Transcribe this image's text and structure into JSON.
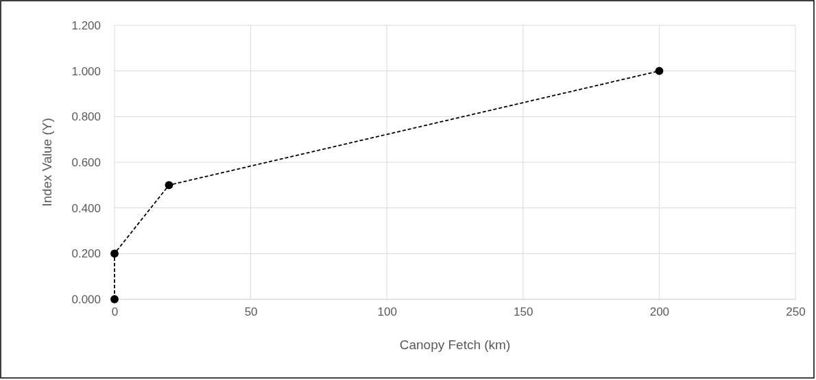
{
  "chart_data": {
    "type": "line",
    "xlabel": "Canopy Fetch (km)",
    "ylabel": "Index Value (Y)",
    "x": [
      0,
      0,
      20,
      200
    ],
    "series": [
      {
        "color": "#000000",
        "values": [
          0,
          0.2,
          0.5,
          1.0
        ]
      }
    ],
    "xlim": [
      0,
      250
    ],
    "xticks": [
      0,
      50,
      100,
      150,
      200,
      250
    ],
    "ylim": [
      0,
      1.2
    ],
    "yticks": [
      {
        "value": 0,
        "label": "0.000"
      },
      {
        "value": 0.2,
        "label": "0.200"
      },
      {
        "value": 0.4,
        "label": "0.400"
      },
      {
        "value": 0.6,
        "label": "0.600"
      },
      {
        "value": 0.8,
        "label": "0.800"
      },
      {
        "value": 1.0,
        "label": "1.000"
      },
      {
        "value": 1.2,
        "label": "1.200"
      }
    ],
    "grid": true,
    "marker": "circle",
    "line_style": "dashed"
  }
}
